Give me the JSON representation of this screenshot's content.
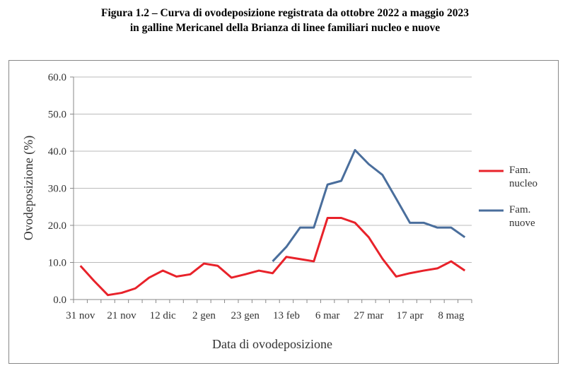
{
  "chart_data": {
    "type": "line",
    "title": "Figura 1.2 – Curva di ovodeposizione registrata da ottobre 2022 a maggio 2023",
    "subtitle": "in galline Mericanel della Brianza di linee familiari nucleo e nuove",
    "x_label": "Data di ovodeposizione",
    "y_label": "Ovodeposizione (%)",
    "categories": [
      "31 nov",
      null,
      null,
      "21 nov",
      null,
      null,
      "12 dic",
      null,
      null,
      "2 gen",
      null,
      null,
      "23 gen",
      null,
      null,
      "13 feb",
      null,
      null,
      "6 mar",
      null,
      null,
      "27 mar",
      null,
      null,
      "17 apr",
      null,
      null,
      "8 mag",
      null
    ],
    "series": [
      {
        "name": "Fam. nucleo",
        "color": "#e8222a",
        "values": [
          9.1,
          5.0,
          1.2,
          1.8,
          3.0,
          5.9,
          7.8,
          6.2,
          6.8,
          9.7,
          9.1,
          5.9,
          6.8,
          7.8,
          7.1,
          11.5,
          10.9,
          10.3,
          22.0,
          22.0,
          20.7,
          16.8,
          11.0,
          6.2,
          7.1,
          7.8,
          8.4,
          10.3,
          7.8
        ]
      },
      {
        "name": "Fam. nuove",
        "color": "#4a6e9c",
        "values": [
          null,
          null,
          null,
          null,
          null,
          null,
          null,
          null,
          null,
          null,
          null,
          null,
          null,
          null,
          10.3,
          14.2,
          19.4,
          19.4,
          31.0,
          32.0,
          40.3,
          36.5,
          33.6,
          27.2,
          20.7,
          20.7,
          19.4,
          19.4,
          16.8
        ]
      }
    ],
    "ylim": [
      0,
      60
    ],
    "yticks": [
      {
        "value": 0,
        "label": "0.0"
      },
      {
        "value": 10,
        "label": "10.0"
      },
      {
        "value": 20,
        "label": "20.0"
      },
      {
        "value": 30,
        "label": "30.0"
      },
      {
        "value": 40,
        "label": "40.0"
      },
      {
        "value": 50,
        "label": "50.0"
      },
      {
        "value": 60,
        "label": "60.0"
      }
    ],
    "grid": true,
    "legend": "right"
  }
}
